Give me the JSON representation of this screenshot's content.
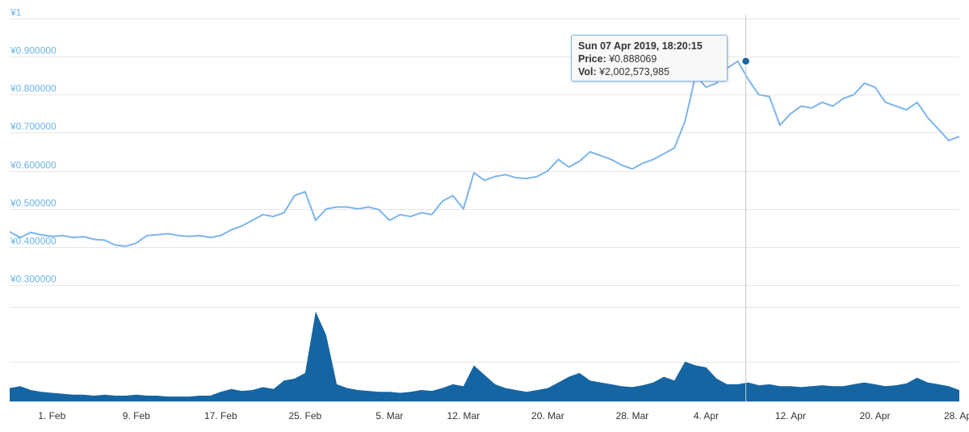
{
  "chart_data": [
    {
      "type": "line",
      "name": "price",
      "y_tick_labels": [
        "¥1",
        "¥0.900000",
        "¥0.800000",
        "¥0.700000",
        "¥0.600000",
        "¥0.500000",
        "¥0.400000",
        "¥0.300000"
      ],
      "y_ticks": [
        1.0,
        0.9,
        0.8,
        0.7,
        0.6,
        0.5,
        0.4,
        0.3
      ],
      "ylim": [
        0.3,
        1.0
      ],
      "x_tick_labels": [
        "1. Feb",
        "9. Feb",
        "17. Feb",
        "25. Feb",
        "5. Mar",
        "12. Mar",
        "20. Mar",
        "28. Mar",
        "4. Apr",
        "12. Apr",
        "20. Apr",
        "28. Apr"
      ],
      "x_ticks": [
        "2019-02-01",
        "2019-02-09",
        "2019-02-17",
        "2019-02-25",
        "2019-03-05",
        "2019-03-12",
        "2019-03-20",
        "2019-03-28",
        "2019-04-04",
        "2019-04-12",
        "2019-04-20",
        "2019-04-28"
      ],
      "xlim": [
        "2019-01-28",
        "2019-04-28"
      ],
      "points": [
        [
          "2019-01-28",
          0.44
        ],
        [
          "2019-01-29",
          0.425
        ],
        [
          "2019-01-30",
          0.438
        ],
        [
          "2019-01-31",
          0.432
        ],
        [
          "2019-02-01",
          0.428
        ],
        [
          "2019-02-02",
          0.43
        ],
        [
          "2019-02-03",
          0.425
        ],
        [
          "2019-02-04",
          0.427
        ],
        [
          "2019-02-05",
          0.42
        ],
        [
          "2019-02-06",
          0.418
        ],
        [
          "2019-02-07",
          0.405
        ],
        [
          "2019-02-08",
          0.402
        ],
        [
          "2019-02-09",
          0.41
        ],
        [
          "2019-02-10",
          0.43
        ],
        [
          "2019-02-11",
          0.432
        ],
        [
          "2019-02-12",
          0.435
        ],
        [
          "2019-02-13",
          0.43
        ],
        [
          "2019-02-14",
          0.428
        ],
        [
          "2019-02-15",
          0.43
        ],
        [
          "2019-02-16",
          0.425
        ],
        [
          "2019-02-17",
          0.43
        ],
        [
          "2019-02-18",
          0.445
        ],
        [
          "2019-02-19",
          0.455
        ],
        [
          "2019-02-20",
          0.47
        ],
        [
          "2019-02-21",
          0.485
        ],
        [
          "2019-02-22",
          0.48
        ],
        [
          "2019-02-23",
          0.49
        ],
        [
          "2019-02-24",
          0.535
        ],
        [
          "2019-02-25",
          0.545
        ],
        [
          "2019-02-26",
          0.47
        ],
        [
          "2019-02-27",
          0.5
        ],
        [
          "2019-02-28",
          0.505
        ],
        [
          "2019-03-01",
          0.505
        ],
        [
          "2019-03-02",
          0.5
        ],
        [
          "2019-03-03",
          0.505
        ],
        [
          "2019-03-04",
          0.498
        ],
        [
          "2019-03-05",
          0.47
        ],
        [
          "2019-03-06",
          0.485
        ],
        [
          "2019-03-07",
          0.48
        ],
        [
          "2019-03-08",
          0.49
        ],
        [
          "2019-03-09",
          0.485
        ],
        [
          "2019-03-10",
          0.52
        ],
        [
          "2019-03-11",
          0.535
        ],
        [
          "2019-03-12",
          0.5
        ],
        [
          "2019-03-13",
          0.595
        ],
        [
          "2019-03-14",
          0.575
        ],
        [
          "2019-03-15",
          0.585
        ],
        [
          "2019-03-16",
          0.59
        ],
        [
          "2019-03-17",
          0.582
        ],
        [
          "2019-03-18",
          0.58
        ],
        [
          "2019-03-19",
          0.585
        ],
        [
          "2019-03-20",
          0.6
        ],
        [
          "2019-03-21",
          0.63
        ],
        [
          "2019-03-22",
          0.61
        ],
        [
          "2019-03-23",
          0.625
        ],
        [
          "2019-03-24",
          0.65
        ],
        [
          "2019-03-25",
          0.64
        ],
        [
          "2019-03-26",
          0.63
        ],
        [
          "2019-03-27",
          0.615
        ],
        [
          "2019-03-28",
          0.605
        ],
        [
          "2019-03-29",
          0.62
        ],
        [
          "2019-03-30",
          0.63
        ],
        [
          "2019-03-31",
          0.645
        ],
        [
          "2019-04-01",
          0.66
        ],
        [
          "2019-04-02",
          0.73
        ],
        [
          "2019-04-03",
          0.85
        ],
        [
          "2019-04-04",
          0.82
        ],
        [
          "2019-04-05",
          0.83
        ],
        [
          "2019-04-06",
          0.87
        ],
        [
          "2019-04-07",
          0.888
        ],
        [
          "2019-04-08",
          0.84
        ],
        [
          "2019-04-09",
          0.8
        ],
        [
          "2019-04-10",
          0.795
        ],
        [
          "2019-04-11",
          0.72
        ],
        [
          "2019-04-12",
          0.75
        ],
        [
          "2019-04-13",
          0.77
        ],
        [
          "2019-04-14",
          0.765
        ],
        [
          "2019-04-15",
          0.78
        ],
        [
          "2019-04-16",
          0.77
        ],
        [
          "2019-04-17",
          0.79
        ],
        [
          "2019-04-18",
          0.8
        ],
        [
          "2019-04-19",
          0.83
        ],
        [
          "2019-04-20",
          0.82
        ],
        [
          "2019-04-21",
          0.78
        ],
        [
          "2019-04-22",
          0.77
        ],
        [
          "2019-04-23",
          0.76
        ],
        [
          "2019-04-24",
          0.78
        ],
        [
          "2019-04-25",
          0.74
        ],
        [
          "2019-04-26",
          0.71
        ],
        [
          "2019-04-27",
          0.68
        ],
        [
          "2019-04-28",
          0.69
        ]
      ],
      "color": "#7cb5ec",
      "grid": true
    },
    {
      "type": "area",
      "name": "volume",
      "color": "#1565a3",
      "ylim": [
        0,
        1
      ],
      "y_unit": "relative",
      "points": [
        [
          "2019-01-28",
          0.14
        ],
        [
          "2019-01-29",
          0.16
        ],
        [
          "2019-01-30",
          0.12
        ],
        [
          "2019-01-31",
          0.1
        ],
        [
          "2019-02-01",
          0.09
        ],
        [
          "2019-02-02",
          0.08
        ],
        [
          "2019-02-03",
          0.07
        ],
        [
          "2019-02-04",
          0.07
        ],
        [
          "2019-02-05",
          0.06
        ],
        [
          "2019-02-06",
          0.07
        ],
        [
          "2019-02-07",
          0.06
        ],
        [
          "2019-02-08",
          0.06
        ],
        [
          "2019-02-09",
          0.07
        ],
        [
          "2019-02-10",
          0.06
        ],
        [
          "2019-02-11",
          0.06
        ],
        [
          "2019-02-12",
          0.05
        ],
        [
          "2019-02-13",
          0.05
        ],
        [
          "2019-02-14",
          0.05
        ],
        [
          "2019-02-15",
          0.06
        ],
        [
          "2019-02-16",
          0.06
        ],
        [
          "2019-02-17",
          0.1
        ],
        [
          "2019-02-18",
          0.13
        ],
        [
          "2019-02-19",
          0.11
        ],
        [
          "2019-02-20",
          0.12
        ],
        [
          "2019-02-21",
          0.15
        ],
        [
          "2019-02-22",
          0.13
        ],
        [
          "2019-02-23",
          0.22
        ],
        [
          "2019-02-24",
          0.24
        ],
        [
          "2019-02-25",
          0.3
        ],
        [
          "2019-02-26",
          0.95
        ],
        [
          "2019-02-27",
          0.7
        ],
        [
          "2019-02-28",
          0.18
        ],
        [
          "2019-03-01",
          0.14
        ],
        [
          "2019-03-02",
          0.12
        ],
        [
          "2019-03-03",
          0.11
        ],
        [
          "2019-03-04",
          0.1
        ],
        [
          "2019-03-05",
          0.1
        ],
        [
          "2019-03-06",
          0.09
        ],
        [
          "2019-03-07",
          0.1
        ],
        [
          "2019-03-08",
          0.12
        ],
        [
          "2019-03-09",
          0.11
        ],
        [
          "2019-03-10",
          0.14
        ],
        [
          "2019-03-11",
          0.18
        ],
        [
          "2019-03-12",
          0.16
        ],
        [
          "2019-03-13",
          0.38
        ],
        [
          "2019-03-14",
          0.28
        ],
        [
          "2019-03-15",
          0.18
        ],
        [
          "2019-03-16",
          0.14
        ],
        [
          "2019-03-17",
          0.12
        ],
        [
          "2019-03-18",
          0.1
        ],
        [
          "2019-03-19",
          0.12
        ],
        [
          "2019-03-20",
          0.14
        ],
        [
          "2019-03-21",
          0.2
        ],
        [
          "2019-03-22",
          0.26
        ],
        [
          "2019-03-23",
          0.3
        ],
        [
          "2019-03-24",
          0.22
        ],
        [
          "2019-03-25",
          0.2
        ],
        [
          "2019-03-26",
          0.18
        ],
        [
          "2019-03-27",
          0.16
        ],
        [
          "2019-03-28",
          0.15
        ],
        [
          "2019-03-29",
          0.17
        ],
        [
          "2019-03-30",
          0.2
        ],
        [
          "2019-03-31",
          0.26
        ],
        [
          "2019-04-01",
          0.22
        ],
        [
          "2019-04-02",
          0.42
        ],
        [
          "2019-04-03",
          0.38
        ],
        [
          "2019-04-04",
          0.36
        ],
        [
          "2019-04-05",
          0.24
        ],
        [
          "2019-04-06",
          0.18
        ],
        [
          "2019-04-07",
          0.18
        ],
        [
          "2019-04-08",
          0.2
        ],
        [
          "2019-04-09",
          0.17
        ],
        [
          "2019-04-10",
          0.18
        ],
        [
          "2019-04-11",
          0.16
        ],
        [
          "2019-04-12",
          0.16
        ],
        [
          "2019-04-13",
          0.15
        ],
        [
          "2019-04-14",
          0.16
        ],
        [
          "2019-04-15",
          0.17
        ],
        [
          "2019-04-16",
          0.16
        ],
        [
          "2019-04-17",
          0.16
        ],
        [
          "2019-04-18",
          0.18
        ],
        [
          "2019-04-19",
          0.2
        ],
        [
          "2019-04-20",
          0.18
        ],
        [
          "2019-04-21",
          0.16
        ],
        [
          "2019-04-22",
          0.17
        ],
        [
          "2019-04-23",
          0.19
        ],
        [
          "2019-04-24",
          0.25
        ],
        [
          "2019-04-25",
          0.2
        ],
        [
          "2019-04-26",
          0.18
        ],
        [
          "2019-04-27",
          0.16
        ],
        [
          "2019-04-28",
          0.12
        ]
      ]
    }
  ],
  "tooltip": {
    "date": "Sun 07 Apr 2019, 18:20:15",
    "price_label": "Price:",
    "price_value": "¥0.888069",
    "vol_label": "Vol:",
    "vol_value": "¥2,002,573,985",
    "point_date": "2019-04-07T18:20:15",
    "point_price": 0.888069
  },
  "colors": {
    "price_line": "#7cb5ec",
    "volume_fill": "#1565a3",
    "marker": "#1565a3",
    "axis_label": "#6ab4e6",
    "grid": "#e6e6e6"
  }
}
